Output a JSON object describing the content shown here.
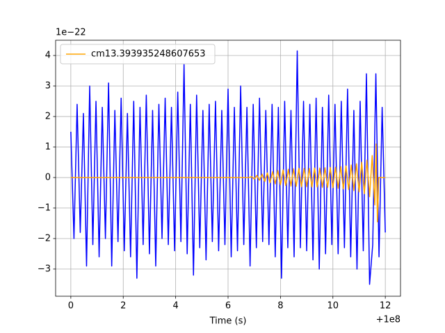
{
  "chart_data": {
    "type": "line",
    "xlabel": "Time (s)",
    "x_offset_text": "+1e8",
    "y_offset_text": "1e−22",
    "xlim": [
      -0.58,
      12.58
    ],
    "ylim": [
      -3.89,
      4.5
    ],
    "xticks": [
      0,
      2,
      4,
      6,
      8,
      10,
      12
    ],
    "yticks": [
      {
        "value": -3,
        "label": "−3"
      },
      {
        "value": -2,
        "label": "−2"
      },
      {
        "value": -1,
        "label": "−1"
      },
      0,
      1,
      2,
      3,
      4
    ],
    "grid": true,
    "legend": "upper left",
    "series": [
      {
        "color": "#0000ff",
        "in_legend": false,
        "x": [
          0,
          0.12,
          0.24,
          0.36,
          0.48,
          0.6,
          0.72,
          0.84,
          0.96,
          1.08,
          1.2,
          1.32,
          1.44,
          1.56,
          1.68,
          1.8,
          1.92,
          2.04,
          2.16,
          2.28,
          2.4,
          2.52,
          2.64,
          2.76,
          2.88,
          3.0,
          3.12,
          3.24,
          3.36,
          3.48,
          3.6,
          3.72,
          3.84,
          3.96,
          4.08,
          4.2,
          4.32,
          4.44,
          4.56,
          4.68,
          4.8,
          4.92,
          5.04,
          5.16,
          5.28,
          5.4,
          5.52,
          5.64,
          5.76,
          5.88,
          6.0,
          6.12,
          6.24,
          6.36,
          6.48,
          6.6,
          6.72,
          6.84,
          6.96,
          7.08,
          7.2,
          7.32,
          7.44,
          7.56,
          7.68,
          7.8,
          7.92,
          8.04,
          8.16,
          8.28,
          8.4,
          8.52,
          8.64,
          8.76,
          8.88,
          9.0,
          9.12,
          9.24,
          9.36,
          9.48,
          9.6,
          9.72,
          9.84,
          9.96,
          10.08,
          10.2,
          10.32,
          10.44,
          10.56,
          10.68,
          10.8,
          10.92,
          11.04,
          11.16,
          11.28,
          11.4,
          11.52,
          11.64,
          11.76,
          11.88,
          12.0
        ],
        "values": [
          1.5,
          -2.0,
          2.4,
          -1.8,
          2.1,
          -2.9,
          3.0,
          -2.2,
          2.5,
          -2.6,
          2.3,
          -2.0,
          3.1,
          -2.9,
          2.2,
          -2.1,
          2.6,
          -2.4,
          2.1,
          -2.6,
          2.5,
          -3.3,
          2.3,
          -2.2,
          2.7,
          -2.5,
          2.2,
          -2.9,
          2.4,
          -2.0,
          2.6,
          -2.2,
          2.3,
          -2.4,
          2.8,
          -2.1,
          3.7,
          -2.5,
          2.4,
          -3.2,
          2.7,
          -2.3,
          2.2,
          -2.7,
          2.4,
          -2.1,
          2.5,
          -2.4,
          2.2,
          -2.2,
          2.9,
          -2.6,
          2.3,
          -2.4,
          3.0,
          -2.2,
          2.3,
          -2.9,
          2.4,
          -2.3,
          2.6,
          -2.1,
          2.2,
          -2.2,
          2.4,
          -2.6,
          2.3,
          -3.3,
          2.5,
          -2.3,
          2.2,
          -2.6,
          4.15,
          -2.3,
          2.5,
          -2.4,
          2.4,
          -2.7,
          2.6,
          -3.0,
          2.3,
          -2.5,
          2.7,
          -2.2,
          2.4,
          -2.5,
          2.5,
          -2.3,
          2.9,
          -2.6,
          2.2,
          -3.0,
          2.5,
          -2.4,
          3.4,
          -3.5,
          -2.2,
          3.4,
          -2.6,
          2.3,
          -1.8
        ]
      },
      {
        "name": "cm13.393935248607653",
        "color": "#ffa500",
        "in_legend": true,
        "x": [
          0,
          6.8,
          6.9,
          7.0,
          7.1,
          7.2,
          7.3,
          7.4,
          7.5,
          7.6,
          7.7,
          7.8,
          7.9,
          8.0,
          8.1,
          8.2,
          8.3,
          8.4,
          8.5,
          8.6,
          8.7,
          8.8,
          8.9,
          9.0,
          9.1,
          9.2,
          9.3,
          9.4,
          9.5,
          9.6,
          9.7,
          9.8,
          9.9,
          10.0,
          10.1,
          10.2,
          10.3,
          10.4,
          10.5,
          10.6,
          10.7,
          10.8,
          10.9,
          11.0,
          11.1,
          11.2,
          11.3,
          11.4,
          11.5,
          11.6,
          11.65,
          11.7,
          11.75,
          12
        ],
        "values": [
          0,
          0,
          0.03,
          -0.05,
          0.07,
          -0.09,
          0.11,
          -0.13,
          0.15,
          -0.17,
          0.19,
          -0.21,
          0.23,
          -0.24,
          0.25,
          -0.26,
          0.27,
          -0.28,
          0.29,
          -0.29,
          0.3,
          -0.3,
          0.3,
          -0.3,
          0.3,
          -0.31,
          0.31,
          -0.31,
          0.31,
          -0.32,
          0.32,
          -0.32,
          0.33,
          -0.33,
          0.34,
          -0.35,
          0.36,
          -0.37,
          0.38,
          -0.39,
          0.41,
          -0.43,
          0.45,
          -0.47,
          0.5,
          -0.53,
          0.57,
          -0.63,
          0.72,
          -0.9,
          1.1,
          -1.45,
          0,
          0
        ]
      }
    ]
  }
}
